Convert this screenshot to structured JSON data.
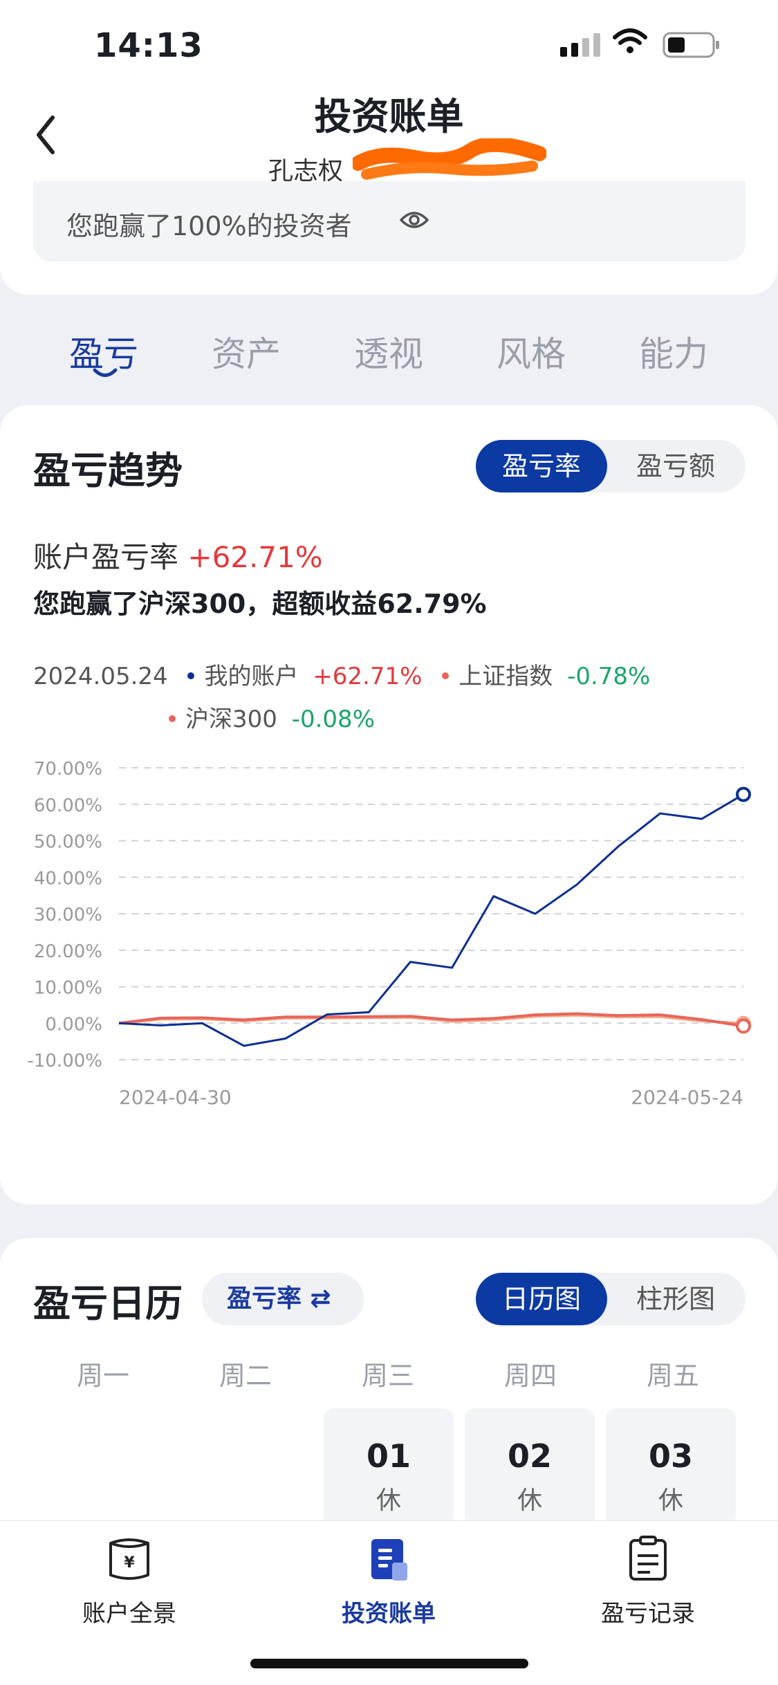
{
  "status": {
    "time": "14:13"
  },
  "header": {
    "title": "投资账单",
    "account_name": "孔志权",
    "beat_text": "您跑赢了100%的投资者"
  },
  "tabs": [
    {
      "label": "盈亏",
      "active": true
    },
    {
      "label": "资产",
      "active": false
    },
    {
      "label": "透视",
      "active": false
    },
    {
      "label": "风格",
      "active": false
    },
    {
      "label": "能力",
      "active": false
    }
  ],
  "trend": {
    "title": "盈亏趋势",
    "toggle": {
      "option_a": "盈亏率",
      "option_b": "盈亏额",
      "selected": "盈亏率"
    },
    "rate_label": "账户盈亏率",
    "rate_value": "+62.71%",
    "exceed_text": "您跑赢了沪深300，超额收益62.79%",
    "legend": {
      "date": "2024.05.24",
      "items": [
        {
          "name": "我的账户",
          "value": "+62.71%",
          "color": "#0c2f8f"
        },
        {
          "name": "上证指数",
          "value": "-0.78%",
          "color": "#e8655a"
        },
        {
          "name": "沪深300",
          "value": "-0.08%",
          "color": "#e8655a"
        }
      ]
    }
  },
  "chart_data": {
    "type": "line",
    "y_ticks": [
      "70.00%",
      "60.00%",
      "50.00%",
      "40.00%",
      "30.00%",
      "20.00%",
      "10.00%",
      "0.00%",
      "-10.00%"
    ],
    "ylim": [
      -10,
      70
    ],
    "x_start_label": "2024-04-30",
    "x_end_label": "2024-05-24",
    "grid": true,
    "series": [
      {
        "name": "我的账户",
        "color": "#0c2f8f",
        "values": [
          0,
          -0.6,
          0,
          -6.2,
          -4.2,
          2.4,
          3.0,
          16.8,
          15.2,
          34.8,
          30.0,
          38.0,
          48.5,
          57.5,
          56.0,
          62.71
        ]
      },
      {
        "name": "上证指数",
        "color": "#e8655a",
        "values": [
          0,
          1.4,
          1.5,
          0.9,
          1.7,
          1.7,
          1.8,
          1.9,
          0.9,
          1.3,
          2.3,
          2.6,
          2.1,
          2.3,
          1.0,
          -0.78
        ]
      },
      {
        "name": "沪深300",
        "color": "#f3a98a",
        "values": [
          0,
          1.1,
          1.2,
          0.6,
          1.4,
          1.4,
          1.5,
          1.6,
          0.5,
          0.9,
          1.9,
          2.2,
          1.7,
          1.8,
          0.6,
          -0.08
        ]
      }
    ]
  },
  "calendar": {
    "title": "盈亏日历",
    "mode_pill": "盈亏率 ⇄",
    "toggle": {
      "option_a": "日历图",
      "option_b": "柱形图",
      "selected": "日历图"
    },
    "weekdays": [
      "周一",
      "周二",
      "周三",
      "周四",
      "周五"
    ],
    "days": [
      {
        "num": "01",
        "status": "休"
      },
      {
        "num": "02",
        "status": "休"
      },
      {
        "num": "03",
        "status": "休"
      }
    ]
  },
  "nav": [
    {
      "label": "账户全景",
      "icon": "wallet-icon",
      "active": false
    },
    {
      "label": "投资账单",
      "icon": "bill-icon",
      "active": true
    },
    {
      "label": "盈亏记录",
      "icon": "clipboard-icon",
      "active": false
    }
  ]
}
